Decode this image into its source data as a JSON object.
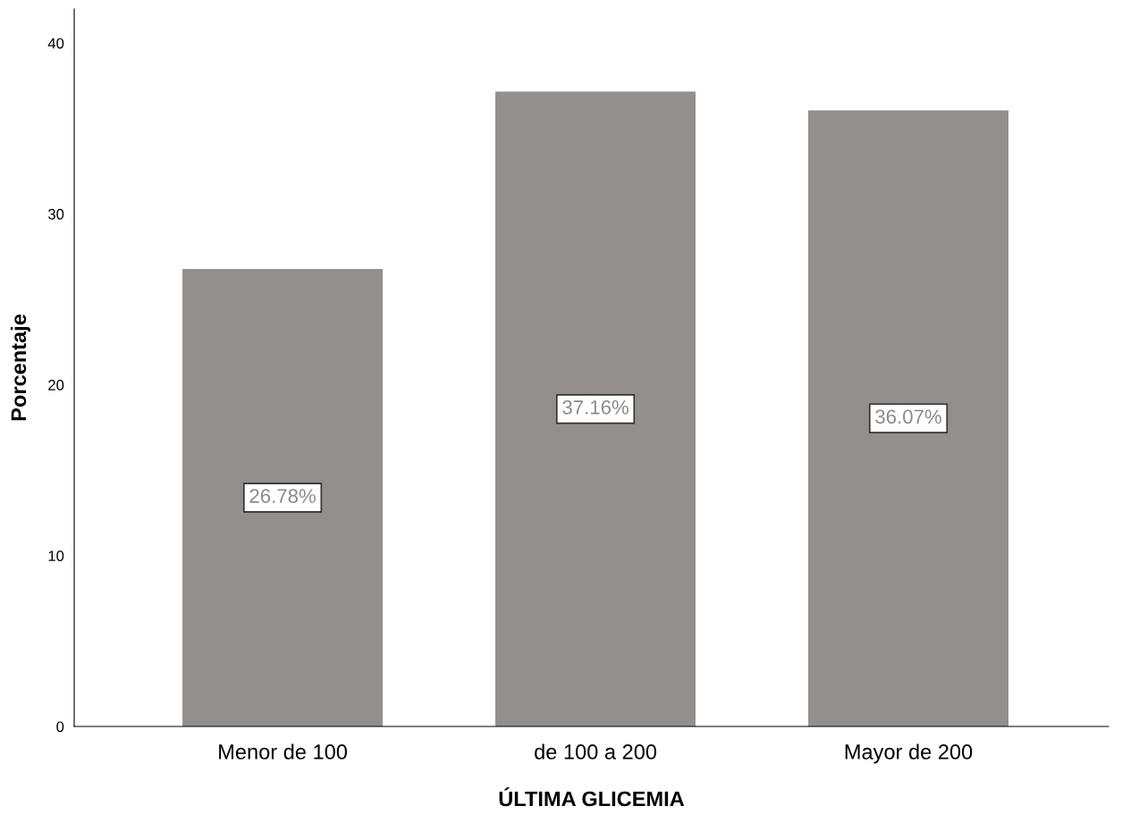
{
  "chart_data": {
    "type": "bar",
    "xlabel": "ÚLTIMA GLICEMIA",
    "ylabel": "Porcentaje",
    "categories": [
      "Menor de 100",
      "de 100 a 200",
      "Mayor de 200"
    ],
    "values": [
      26.78,
      37.16,
      36.07
    ],
    "value_labels": [
      "26.78%",
      "37.16%",
      "36.07%"
    ],
    "color": "#938f8d",
    "ylim": [
      0,
      42
    ],
    "yticks": [
      0,
      10,
      20,
      30,
      40
    ],
    "grid": false,
    "legend": false
  }
}
